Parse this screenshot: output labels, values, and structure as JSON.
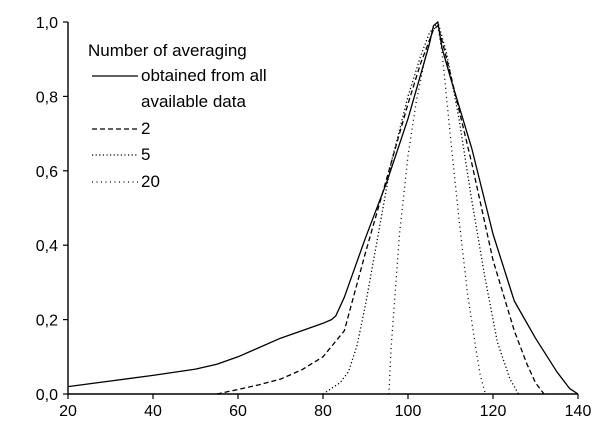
{
  "chart_data": {
    "type": "line",
    "title": "",
    "xlabel": "",
    "ylabel": "",
    "xlim": [
      20,
      140
    ],
    "ylim": [
      0,
      1.0
    ],
    "x_ticks": [
      20,
      40,
      60,
      80,
      100,
      120,
      140
    ],
    "x_tick_labels": [
      "20",
      "40",
      "60",
      "80",
      "100",
      "120",
      "140"
    ],
    "y_ticks": [
      0,
      0.2,
      0.4,
      0.6,
      0.8,
      1.0
    ],
    "y_tick_labels": [
      "0,0",
      "0,2",
      "0,4",
      "0,6",
      "0,8",
      "1,0"
    ],
    "grid": false,
    "legend": {
      "placement": "top-left",
      "title": "Number of averaging",
      "entries": [
        {
          "lines": [
            "obtained from all",
            "available data"
          ],
          "style": "solid"
        },
        {
          "lines": [
            "2"
          ],
          "style": "dashed"
        },
        {
          "lines": [
            "5"
          ],
          "style": "dotted"
        },
        {
          "lines": [
            "20"
          ],
          "style": "dotted-fine"
        }
      ]
    },
    "series": [
      {
        "style": "solid",
        "x": [
          20,
          30,
          40,
          50,
          55,
          60,
          65,
          70,
          75,
          80,
          82,
          83,
          85,
          90,
          95,
          100,
          103,
          105,
          106,
          107,
          108,
          110,
          115,
          120,
          125,
          130,
          135,
          138,
          140
        ],
        "y": [
          0.02,
          0.035,
          0.05,
          0.067,
          0.08,
          0.1,
          0.125,
          0.15,
          0.17,
          0.19,
          0.2,
          0.21,
          0.26,
          0.42,
          0.57,
          0.74,
          0.86,
          0.94,
          0.99,
          1.0,
          0.93,
          0.85,
          0.66,
          0.43,
          0.25,
          0.15,
          0.06,
          0.015,
          0.0
        ]
      },
      {
        "style": "dashed",
        "x": [
          55,
          60,
          65,
          70,
          75,
          80,
          85,
          90,
          95,
          100,
          103,
          105,
          106,
          107,
          108,
          110,
          115,
          120,
          125,
          128,
          130,
          132
        ],
        "y": [
          0.0,
          0.012,
          0.025,
          0.04,
          0.065,
          0.1,
          0.17,
          0.38,
          0.58,
          0.78,
          0.89,
          0.95,
          0.98,
          0.99,
          0.95,
          0.86,
          0.62,
          0.36,
          0.17,
          0.08,
          0.03,
          0.0
        ]
      },
      {
        "style": "dotted",
        "x": [
          80,
          84,
          86,
          88,
          90,
          93,
          96,
          100,
          103,
          105,
          107,
          109,
          112,
          115,
          118,
          121,
          124,
          126
        ],
        "y": [
          0.0,
          0.03,
          0.06,
          0.13,
          0.24,
          0.43,
          0.62,
          0.8,
          0.91,
          0.97,
          1.0,
          0.92,
          0.74,
          0.52,
          0.32,
          0.14,
          0.04,
          0.0
        ]
      },
      {
        "style": "dotted-fine",
        "x": [
          95.5,
          96,
          98,
          100,
          102,
          104,
          105,
          106,
          107,
          108,
          110,
          112,
          114,
          116,
          117,
          118.2
        ],
        "y": [
          0.0,
          0.12,
          0.43,
          0.64,
          0.79,
          0.9,
          0.95,
          0.98,
          0.99,
          0.92,
          0.69,
          0.47,
          0.27,
          0.12,
          0.05,
          0.0
        ]
      }
    ]
  }
}
